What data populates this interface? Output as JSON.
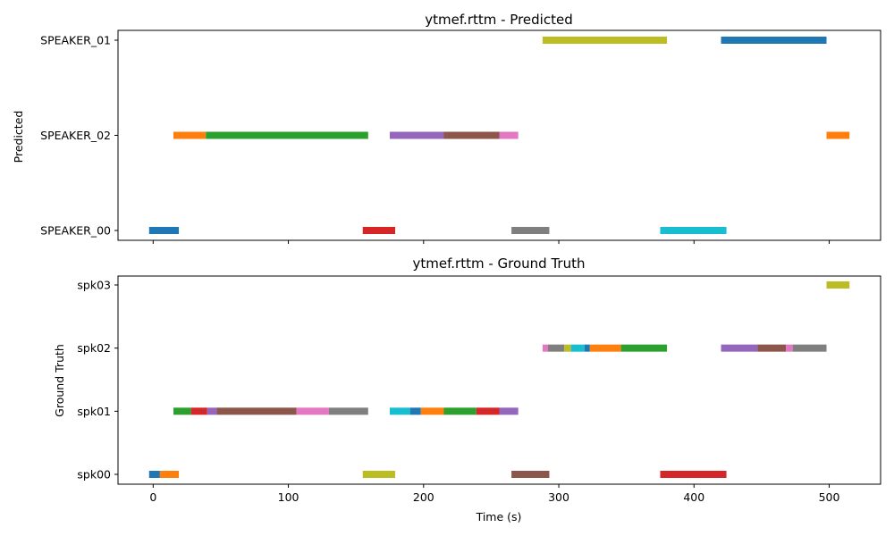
{
  "chart_data": [
    {
      "type": "timeline",
      "title": "ytmef.rttm - Predicted",
      "xlabel": "",
      "ylabel": "Predicted",
      "xlim": [
        -26,
        538
      ],
      "xticks": [
        0,
        100,
        200,
        300,
        400,
        500
      ],
      "xtick_labels_visible": false,
      "rows": [
        "SPEAKER_00",
        "SPEAKER_02",
        "SPEAKER_01"
      ],
      "segments": [
        {
          "row": "SPEAKER_00",
          "start": -3,
          "end": 19,
          "color": "#1f77b4"
        },
        {
          "row": "SPEAKER_00",
          "start": 155,
          "end": 179,
          "color": "#d62728"
        },
        {
          "row": "SPEAKER_00",
          "start": 265,
          "end": 293,
          "color": "#7f7f7f"
        },
        {
          "row": "SPEAKER_00",
          "start": 375,
          "end": 424,
          "color": "#17becf"
        },
        {
          "row": "SPEAKER_02",
          "start": 15,
          "end": 39,
          "color": "#ff7f0e"
        },
        {
          "row": "SPEAKER_02",
          "start": 39,
          "end": 159,
          "color": "#2ca02c"
        },
        {
          "row": "SPEAKER_02",
          "start": 175,
          "end": 215,
          "color": "#9467bd"
        },
        {
          "row": "SPEAKER_02",
          "start": 215,
          "end": 256,
          "color": "#8c564b"
        },
        {
          "row": "SPEAKER_02",
          "start": 256,
          "end": 270,
          "color": "#e377c2"
        },
        {
          "row": "SPEAKER_02",
          "start": 498,
          "end": 515,
          "color": "#ff7f0e"
        },
        {
          "row": "SPEAKER_01",
          "start": 288,
          "end": 380,
          "color": "#bcbd22"
        },
        {
          "row": "SPEAKER_01",
          "start": 420,
          "end": 498,
          "color": "#1f77b4"
        }
      ]
    },
    {
      "type": "timeline",
      "title": "ytmef.rttm - Ground Truth",
      "xlabel": "Time (s)",
      "ylabel": "Ground Truth",
      "xlim": [
        -26,
        538
      ],
      "xticks": [
        0,
        100,
        200,
        300,
        400,
        500
      ],
      "xtick_labels_visible": true,
      "rows": [
        "spk00",
        "spk01",
        "spk02",
        "spk03"
      ],
      "segments": [
        {
          "row": "spk00",
          "start": -3,
          "end": 5,
          "color": "#1f77b4"
        },
        {
          "row": "spk00",
          "start": 5,
          "end": 19,
          "color": "#ff7f0e"
        },
        {
          "row": "spk00",
          "start": 155,
          "end": 179,
          "color": "#bcbd22"
        },
        {
          "row": "spk00",
          "start": 265,
          "end": 293,
          "color": "#8c564b"
        },
        {
          "row": "spk00",
          "start": 375,
          "end": 424,
          "color": "#d62728"
        },
        {
          "row": "spk01",
          "start": 15,
          "end": 28,
          "color": "#2ca02c"
        },
        {
          "row": "spk01",
          "start": 28,
          "end": 40,
          "color": "#d62728"
        },
        {
          "row": "spk01",
          "start": 40,
          "end": 47,
          "color": "#9467bd"
        },
        {
          "row": "spk01",
          "start": 47,
          "end": 106,
          "color": "#8c564b"
        },
        {
          "row": "spk01",
          "start": 106,
          "end": 130,
          "color": "#e377c2"
        },
        {
          "row": "spk01",
          "start": 130,
          "end": 159,
          "color": "#7f7f7f"
        },
        {
          "row": "spk01",
          "start": 175,
          "end": 190,
          "color": "#17becf"
        },
        {
          "row": "spk01",
          "start": 190,
          "end": 198,
          "color": "#1f77b4"
        },
        {
          "row": "spk01",
          "start": 198,
          "end": 215,
          "color": "#ff7f0e"
        },
        {
          "row": "spk01",
          "start": 215,
          "end": 239,
          "color": "#2ca02c"
        },
        {
          "row": "spk01",
          "start": 239,
          "end": 256,
          "color": "#d62728"
        },
        {
          "row": "spk01",
          "start": 256,
          "end": 270,
          "color": "#9467bd"
        },
        {
          "row": "spk02",
          "start": 288,
          "end": 292,
          "color": "#e377c2"
        },
        {
          "row": "spk02",
          "start": 292,
          "end": 304,
          "color": "#7f7f7f"
        },
        {
          "row": "spk02",
          "start": 304,
          "end": 309,
          "color": "#bcbd22"
        },
        {
          "row": "spk02",
          "start": 309,
          "end": 319,
          "color": "#17becf"
        },
        {
          "row": "spk02",
          "start": 319,
          "end": 323,
          "color": "#1f77b4"
        },
        {
          "row": "spk02",
          "start": 323,
          "end": 346,
          "color": "#ff7f0e"
        },
        {
          "row": "spk02",
          "start": 346,
          "end": 380,
          "color": "#2ca02c"
        },
        {
          "row": "spk02",
          "start": 420,
          "end": 447,
          "color": "#9467bd"
        },
        {
          "row": "spk02",
          "start": 447,
          "end": 468,
          "color": "#8c564b"
        },
        {
          "row": "spk02",
          "start": 468,
          "end": 473,
          "color": "#e377c2"
        },
        {
          "row": "spk02",
          "start": 473,
          "end": 498,
          "color": "#7f7f7f"
        },
        {
          "row": "spk03",
          "start": 498,
          "end": 515,
          "color": "#bcbd22"
        }
      ]
    }
  ]
}
